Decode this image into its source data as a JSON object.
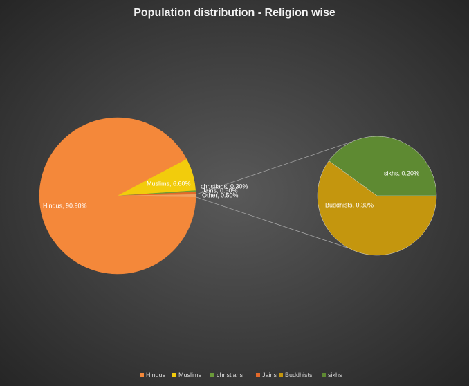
{
  "chart_data": {
    "type": "pie-of-pie",
    "title": "Population distribution - Religion wise",
    "categories": [
      "Hindus",
      "Muslims",
      "christians",
      "Jains",
      "Buddhists",
      "sikhs"
    ],
    "values": [
      90.9,
      6.6,
      0.3,
      0.5,
      0.3,
      0.2
    ],
    "value_labels": [
      "Hindus, 90.90%",
      "Muslims, 6.60%",
      "christians, 0.30%",
      "Jains, 0.50%",
      "Buddhists, 0.30%",
      "sikhs, 0.20%"
    ],
    "colors": [
      "#f4883a",
      "#f2cc0c",
      "#6b9a3a",
      "#e3692a",
      "#c4960e",
      "#5e8a32"
    ],
    "other": {
      "value": 0.5,
      "label": "Other, 0.50%",
      "color": "#f0a060"
    },
    "legend": "bottom"
  }
}
